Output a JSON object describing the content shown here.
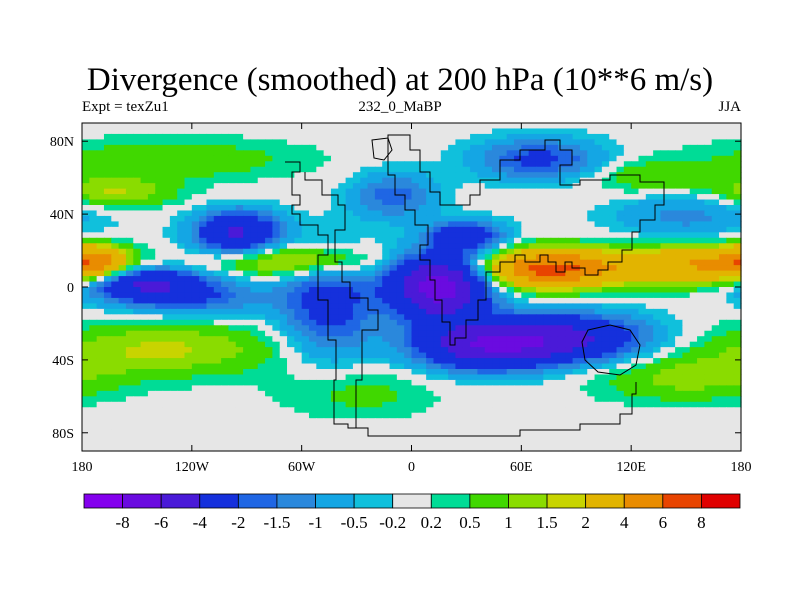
{
  "title": "Divergence (smoothed) at 200 hPa (10**6 m/s)",
  "subtitle_left": "Expt = texZu1",
  "subtitle_center": "232_0_MaBP",
  "subtitle_right": "JJA",
  "chart_data": {
    "type": "heatmap",
    "title": "Divergence (smoothed) at 200 hPa (10**6 m/s)",
    "variable": "Divergence (smoothed)",
    "level": "200 hPa",
    "units": "10**6 m/s",
    "season": "JJA",
    "x_range": [
      -180,
      180
    ],
    "y_range": [
      -90,
      90
    ],
    "x_ticks": [
      {
        "value": -180,
        "label": "180"
      },
      {
        "value": -120,
        "label": "120W"
      },
      {
        "value": -60,
        "label": "60W"
      },
      {
        "value": 0,
        "label": "0"
      },
      {
        "value": 60,
        "label": "60E"
      },
      {
        "value": 120,
        "label": "120E"
      },
      {
        "value": 180,
        "label": "180"
      }
    ],
    "y_ticks": [
      {
        "value": 80,
        "label": "80N"
      },
      {
        "value": 40,
        "label": "40N"
      },
      {
        "value": 0,
        "label": "0"
      },
      {
        "value": -40,
        "label": "40S"
      },
      {
        "value": -80,
        "label": "80S"
      }
    ],
    "contour_levels": [
      "-8",
      "-6",
      "-4",
      "-2",
      "-1.5",
      "-1",
      "-0.5",
      "-0.2",
      "0.2",
      "0.5",
      "1",
      "1.5",
      "2",
      "4",
      "6",
      "8"
    ],
    "colors": [
      "#8400ee",
      "#6a0be0",
      "#4a1ad8",
      "#1530dc",
      "#1f66e4",
      "#2a88dc",
      "#14a6e4",
      "#10c0dc",
      "#e6e6e6",
      "#00dc96",
      "#40d800",
      "#8adc00",
      "#c8d400",
      "#e2b400",
      "#e98c00",
      "#e84400",
      "#e00000"
    ],
    "fields": [
      {
        "lon": 15,
        "lat": 0,
        "amp": -7.2,
        "sx": 18,
        "sy": 12
      },
      {
        "lon": 40,
        "lat": -32,
        "amp": -5.2,
        "sx": 26,
        "sy": 9
      },
      {
        "lon": 85,
        "lat": -28,
        "amp": -4.2,
        "sx": 30,
        "sy": 9
      },
      {
        "lon": -145,
        "lat": 2,
        "amp": -3.8,
        "sx": 22,
        "sy": 6
      },
      {
        "lon": -95,
        "lat": 30,
        "amp": -4.2,
        "sx": 16,
        "sy": 8
      },
      {
        "lon": 30,
        "lat": 28,
        "amp": -3.0,
        "sx": 14,
        "sy": 6
      },
      {
        "lon": 70,
        "lat": 70,
        "amp": -2.3,
        "sx": 24,
        "sy": 8
      },
      {
        "lon": -45,
        "lat": -10,
        "amp": -2.5,
        "sx": 18,
        "sy": 20
      },
      {
        "lon": -120,
        "lat": -6,
        "amp": -1.8,
        "sx": 30,
        "sy": 7
      },
      {
        "lon": -10,
        "lat": 50,
        "amp": -1.8,
        "sx": 16,
        "sy": 9
      },
      {
        "lon": 150,
        "lat": 40,
        "amp": -1.2,
        "sx": 28,
        "sy": 10
      },
      {
        "lon": 75,
        "lat": 10,
        "amp": 6.5,
        "sx": 24,
        "sy": 7
      },
      {
        "lon": 150,
        "lat": 12,
        "amp": 4.0,
        "sx": 32,
        "sy": 7
      },
      {
        "lon": -175,
        "lat": 14,
        "amp": 4.2,
        "sx": 12,
        "sy": 6
      },
      {
        "lon": -135,
        "lat": -34,
        "amp": 1.6,
        "sx": 45,
        "sy": 10
      },
      {
        "lon": -60,
        "lat": 14,
        "amp": 2.2,
        "sx": 30,
        "sy": 6
      },
      {
        "lon": -165,
        "lat": 52,
        "amp": 1.6,
        "sx": 24,
        "sy": 6
      },
      {
        "lon": 150,
        "lat": -50,
        "amp": 1.2,
        "sx": 35,
        "sy": 9
      },
      {
        "lon": 130,
        "lat": 60,
        "amp": 1.0,
        "sx": 25,
        "sy": 7
      },
      {
        "lon": -130,
        "lat": 70,
        "amp": 0.9,
        "sx": 50,
        "sy": 8
      },
      {
        "lon": -30,
        "lat": -58,
        "amp": 0.7,
        "sx": 30,
        "sy": 10
      }
    ]
  }
}
